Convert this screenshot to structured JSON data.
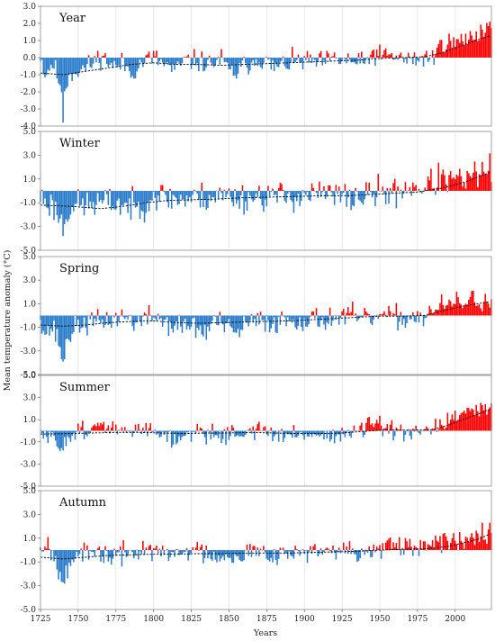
{
  "chart_data": {
    "type": "bar",
    "x_axis": {
      "label": "Years",
      "range": [
        1725,
        2024
      ],
      "ticks": [
        1725,
        1750,
        1775,
        1800,
        1825,
        1850,
        1875,
        1900,
        1925,
        1950,
        1975,
        2000
      ],
      "tick_labels": [
        "1725",
        "1750",
        "1775",
        "1800",
        "1825",
        "1850",
        "1875",
        "1900",
        "1925",
        "1950",
        "1975",
        "2000"
      ],
      "vertical_grid": true
    },
    "y_axis_label": "Mean temperature anomaly (°C)",
    "colors": {
      "positive": "#ff0000",
      "negative": "#2a7ccb",
      "trend": "#000000"
    },
    "panels": [
      {
        "title": "Year",
        "ylim": [
          -4,
          3
        ],
        "yticks": [
          3,
          2,
          1,
          0,
          -1,
          -2,
          -3,
          -4
        ],
        "ytick_labels": [
          "3.0",
          "2.0",
          "1.0",
          "0.0",
          "-1.0",
          "-2.0",
          "-3.0",
          "-4.0"
        ],
        "anchors": [
          [
            1725,
            0.2
          ],
          [
            1728,
            -1.0
          ],
          [
            1733,
            -0.3
          ],
          [
            1738,
            -1.5
          ],
          [
            1740,
            -3.7
          ],
          [
            1741,
            -1.8
          ],
          [
            1745,
            -0.9
          ],
          [
            1755,
            -0.6
          ],
          [
            1760,
            -0.3
          ],
          [
            1765,
            0.1
          ],
          [
            1775,
            -0.6
          ],
          [
            1780,
            -0.3
          ],
          [
            1785,
            -0.9
          ],
          [
            1795,
            -0.1
          ],
          [
            1800,
            0.0
          ],
          [
            1815,
            -0.8
          ],
          [
            1820,
            -0.2
          ],
          [
            1830,
            -0.2
          ],
          [
            1837,
            -0.4
          ],
          [
            1845,
            -0.1
          ],
          [
            1850,
            -0.8
          ],
          [
            1855,
            -0.9
          ],
          [
            1860,
            -0.5
          ],
          [
            1870,
            0.0
          ],
          [
            1880,
            -0.6
          ],
          [
            1890,
            -0.3
          ],
          [
            1900,
            -0.2
          ],
          [
            1910,
            -0.3
          ],
          [
            1920,
            -0.1
          ],
          [
            1930,
            -0.2
          ],
          [
            1940,
            -0.4
          ],
          [
            1945,
            0.3
          ],
          [
            1950,
            0.1
          ],
          [
            1960,
            0.1
          ],
          [
            1970,
            -0.2
          ],
          [
            1980,
            0.0
          ],
          [
            1988,
            0.1
          ],
          [
            1990,
            1.0
          ],
          [
            2000,
            0.8
          ],
          [
            2010,
            1.2
          ],
          [
            2024,
            1.9
          ]
        ],
        "trend": [
          [
            1725,
            -0.9
          ],
          [
            1740,
            -1.0
          ],
          [
            1755,
            -0.8
          ],
          [
            1770,
            -0.6
          ],
          [
            1785,
            -0.4
          ],
          [
            1800,
            -0.3
          ],
          [
            1815,
            -0.4
          ],
          [
            1830,
            -0.4
          ],
          [
            1845,
            -0.45
          ],
          [
            1860,
            -0.4
          ],
          [
            1875,
            -0.35
          ],
          [
            1890,
            -0.3
          ],
          [
            1905,
            -0.25
          ],
          [
            1920,
            -0.2
          ],
          [
            1935,
            -0.15
          ],
          [
            1950,
            -0.05
          ],
          [
            1965,
            0.0
          ],
          [
            1980,
            0.05
          ],
          [
            1990,
            0.25
          ],
          [
            2000,
            0.55
          ],
          [
            2010,
            0.9
          ],
          [
            2024,
            1.3
          ]
        ],
        "amp": 0.55,
        "seed": 11
      },
      {
        "title": "Winter",
        "ylim": [
          -5,
          5
        ],
        "yticks": [
          5,
          3,
          1,
          -1,
          -3,
          -5
        ],
        "ytick_labels": [
          "5.0",
          "3.0",
          "1.0",
          "-1.0",
          "-3.0",
          "-5.0"
        ],
        "anchors": [
          [
            1725,
            -0.5
          ],
          [
            1735,
            -1.5
          ],
          [
            1740,
            -3.0
          ],
          [
            1745,
            -1.2
          ],
          [
            1755,
            -1.2
          ],
          [
            1765,
            -1.0
          ],
          [
            1775,
            -1.0
          ],
          [
            1790,
            -1.5
          ],
          [
            1800,
            -0.3
          ],
          [
            1810,
            -0.6
          ],
          [
            1820,
            -0.7
          ],
          [
            1830,
            -0.6
          ],
          [
            1845,
            -0.4
          ],
          [
            1860,
            -0.6
          ],
          [
            1875,
            -0.4
          ],
          [
            1890,
            -0.5
          ],
          [
            1900,
            -0.3
          ],
          [
            1915,
            -0.3
          ],
          [
            1930,
            -0.6
          ],
          [
            1940,
            -0.5
          ],
          [
            1950,
            -0.1
          ],
          [
            1960,
            -0.2
          ],
          [
            1970,
            0.4
          ],
          [
            1980,
            0.3
          ],
          [
            1990,
            1.0
          ],
          [
            2000,
            0.8
          ],
          [
            2010,
            1.0
          ],
          [
            2024,
            2.0
          ]
        ],
        "trend": [
          [
            1725,
            -1.2
          ],
          [
            1745,
            -1.3
          ],
          [
            1765,
            -1.5
          ],
          [
            1780,
            -1.3
          ],
          [
            1795,
            -1.0
          ],
          [
            1810,
            -0.8
          ],
          [
            1825,
            -0.75
          ],
          [
            1840,
            -0.7
          ],
          [
            1855,
            -0.6
          ],
          [
            1870,
            -0.55
          ],
          [
            1885,
            -0.5
          ],
          [
            1900,
            -0.45
          ],
          [
            1915,
            -0.4
          ],
          [
            1930,
            -0.4
          ],
          [
            1945,
            -0.3
          ],
          [
            1960,
            -0.2
          ],
          [
            1975,
            -0.1
          ],
          [
            1990,
            0.2
          ],
          [
            2000,
            0.5
          ],
          [
            2010,
            0.9
          ],
          [
            2024,
            1.6
          ]
        ],
        "amp": 1.1,
        "seed": 23
      },
      {
        "title": "Spring",
        "ylim": [
          -5,
          5
        ],
        "yticks": [
          5,
          3,
          1,
          -1,
          -3,
          -5
        ],
        "ytick_labels": [
          "5.0",
          "3.0",
          "1.0",
          "-1.0",
          "-3.0",
          "-5.0"
        ],
        "anchors": [
          [
            1725,
            0.1
          ],
          [
            1728,
            -1.5
          ],
          [
            1733,
            -1.0
          ],
          [
            1738,
            -2.5
          ],
          [
            1740,
            -4.2
          ],
          [
            1743,
            -1.8
          ],
          [
            1750,
            -0.8
          ],
          [
            1760,
            -0.6
          ],
          [
            1770,
            -0.4
          ],
          [
            1780,
            -0.1
          ],
          [
            1790,
            -0.6
          ],
          [
            1800,
            0.0
          ],
          [
            1815,
            -1.0
          ],
          [
            1825,
            -0.8
          ],
          [
            1835,
            -1.5
          ],
          [
            1840,
            -0.3
          ],
          [
            1850,
            -1.2
          ],
          [
            1855,
            -1.6
          ],
          [
            1860,
            -0.8
          ],
          [
            1870,
            -0.5
          ],
          [
            1880,
            -0.6
          ],
          [
            1890,
            -0.3
          ],
          [
            1900,
            -0.4
          ],
          [
            1915,
            -0.3
          ],
          [
            1930,
            0.0
          ],
          [
            1940,
            -0.4
          ],
          [
            1950,
            0.0
          ],
          [
            1960,
            -0.2
          ],
          [
            1970,
            -0.2
          ],
          [
            1980,
            0.0
          ],
          [
            1990,
            0.7
          ],
          [
            2000,
            1.0
          ],
          [
            2010,
            1.3
          ],
          [
            2024,
            1.2
          ]
        ],
        "trend": [
          [
            1725,
            -0.8
          ],
          [
            1740,
            -0.9
          ],
          [
            1755,
            -0.8
          ],
          [
            1770,
            -0.6
          ],
          [
            1785,
            -0.5
          ],
          [
            1800,
            -0.45
          ],
          [
            1815,
            -0.6
          ],
          [
            1830,
            -0.65
          ],
          [
            1845,
            -0.6
          ],
          [
            1860,
            -0.55
          ],
          [
            1875,
            -0.5
          ],
          [
            1890,
            -0.45
          ],
          [
            1905,
            -0.35
          ],
          [
            1920,
            -0.25
          ],
          [
            1935,
            -0.15
          ],
          [
            1950,
            -0.05
          ],
          [
            1965,
            -0.05
          ],
          [
            1980,
            0.0
          ],
          [
            1990,
            0.35
          ],
          [
            2000,
            0.65
          ],
          [
            2010,
            0.9
          ],
          [
            2024,
            1.2
          ]
        ],
        "amp": 0.85,
        "seed": 37
      },
      {
        "title": "Summer",
        "ylim": [
          -5,
          5
        ],
        "yticks": [
          5,
          3,
          1,
          -1,
          -3,
          -5
        ],
        "ytick_labels": [
          "5.0",
          "3.0",
          "1.0",
          "-1.0",
          "-3.0",
          "-5.0"
        ],
        "anchors": [
          [
            1725,
            -0.3
          ],
          [
            1733,
            -0.8
          ],
          [
            1738,
            -1.5
          ],
          [
            1745,
            -0.3
          ],
          [
            1755,
            0.2
          ],
          [
            1765,
            0.3
          ],
          [
            1775,
            0.2
          ],
          [
            1785,
            -0.3
          ],
          [
            1790,
            0.1
          ],
          [
            1800,
            0.3
          ],
          [
            1810,
            -0.5
          ],
          [
            1815,
            -1.2
          ],
          [
            1820,
            -0.3
          ],
          [
            1830,
            0.0
          ],
          [
            1840,
            -0.4
          ],
          [
            1850,
            -0.3
          ],
          [
            1860,
            -0.2
          ],
          [
            1870,
            0.2
          ],
          [
            1880,
            -0.4
          ],
          [
            1890,
            -0.5
          ],
          [
            1900,
            -0.2
          ],
          [
            1910,
            -0.4
          ],
          [
            1920,
            -0.4
          ],
          [
            1930,
            -0.3
          ],
          [
            1940,
            0.2
          ],
          [
            1945,
            0.7
          ],
          [
            1950,
            0.4
          ],
          [
            1960,
            -0.2
          ],
          [
            1970,
            -0.3
          ],
          [
            1980,
            -0.3
          ],
          [
            1990,
            0.6
          ],
          [
            2000,
            1.2
          ],
          [
            2010,
            1.5
          ],
          [
            2024,
            2.2
          ]
        ],
        "trend": [
          [
            1725,
            -0.3
          ],
          [
            1745,
            -0.25
          ],
          [
            1760,
            -0.2
          ],
          [
            1775,
            -0.15
          ],
          [
            1790,
            -0.15
          ],
          [
            1805,
            -0.2
          ],
          [
            1820,
            -0.25
          ],
          [
            1835,
            -0.2
          ],
          [
            1850,
            -0.2
          ],
          [
            1865,
            -0.15
          ],
          [
            1880,
            -0.2
          ],
          [
            1895,
            -0.25
          ],
          [
            1910,
            -0.25
          ],
          [
            1925,
            -0.2
          ],
          [
            1940,
            -0.05
          ],
          [
            1955,
            0.1
          ],
          [
            1970,
            0.05
          ],
          [
            1985,
            0.1
          ],
          [
            1995,
            0.5
          ],
          [
            2005,
            1.0
          ],
          [
            2015,
            1.5
          ],
          [
            2024,
            2.0
          ]
        ],
        "amp": 0.7,
        "seed": 51
      },
      {
        "title": "Autumn",
        "ylim": [
          -5,
          5
        ],
        "yticks": [
          5,
          3,
          1,
          -1,
          -3,
          -5
        ],
        "ytick_labels": [
          "5.0",
          "3.0",
          "1.0",
          "-1.0",
          "-3.0",
          "-5.0"
        ],
        "anchors": [
          [
            1725,
            0.4
          ],
          [
            1730,
            0.6
          ],
          [
            1735,
            -1.0
          ],
          [
            1740,
            -2.2
          ],
          [
            1745,
            -0.8
          ],
          [
            1755,
            -0.4
          ],
          [
            1765,
            -0.3
          ],
          [
            1775,
            -0.6
          ],
          [
            1785,
            -0.2
          ],
          [
            1795,
            0.1
          ],
          [
            1805,
            -0.3
          ],
          [
            1815,
            -0.4
          ],
          [
            1825,
            0.1
          ],
          [
            1835,
            -0.3
          ],
          [
            1850,
            -0.5
          ],
          [
            1860,
            -0.2
          ],
          [
            1875,
            -0.2
          ],
          [
            1890,
            -0.3
          ],
          [
            1900,
            -0.1
          ],
          [
            1910,
            -0.2
          ],
          [
            1920,
            -0.3
          ],
          [
            1930,
            0.1
          ],
          [
            1940,
            -0.4
          ],
          [
            1950,
            0.2
          ],
          [
            1960,
            0.2
          ],
          [
            1970,
            0.0
          ],
          [
            1980,
            0.3
          ],
          [
            1990,
            0.5
          ],
          [
            2000,
            0.8
          ],
          [
            2010,
            1.2
          ],
          [
            2024,
            2.0
          ]
        ],
        "trend": [
          [
            1725,
            -0.6
          ],
          [
            1740,
            -0.75
          ],
          [
            1755,
            -0.6
          ],
          [
            1770,
            -0.45
          ],
          [
            1785,
            -0.4
          ],
          [
            1800,
            -0.35
          ],
          [
            1815,
            -0.35
          ],
          [
            1830,
            -0.3
          ],
          [
            1845,
            -0.3
          ],
          [
            1860,
            -0.25
          ],
          [
            1875,
            -0.25
          ],
          [
            1890,
            -0.25
          ],
          [
            1905,
            -0.2
          ],
          [
            1920,
            -0.15
          ],
          [
            1935,
            -0.1
          ],
          [
            1950,
            0.0
          ],
          [
            1965,
            0.05
          ],
          [
            1980,
            0.1
          ],
          [
            1995,
            0.3
          ],
          [
            2005,
            0.6
          ],
          [
            2015,
            0.9
          ],
          [
            2024,
            1.4
          ]
        ],
        "amp": 0.8,
        "seed": 67
      }
    ]
  }
}
